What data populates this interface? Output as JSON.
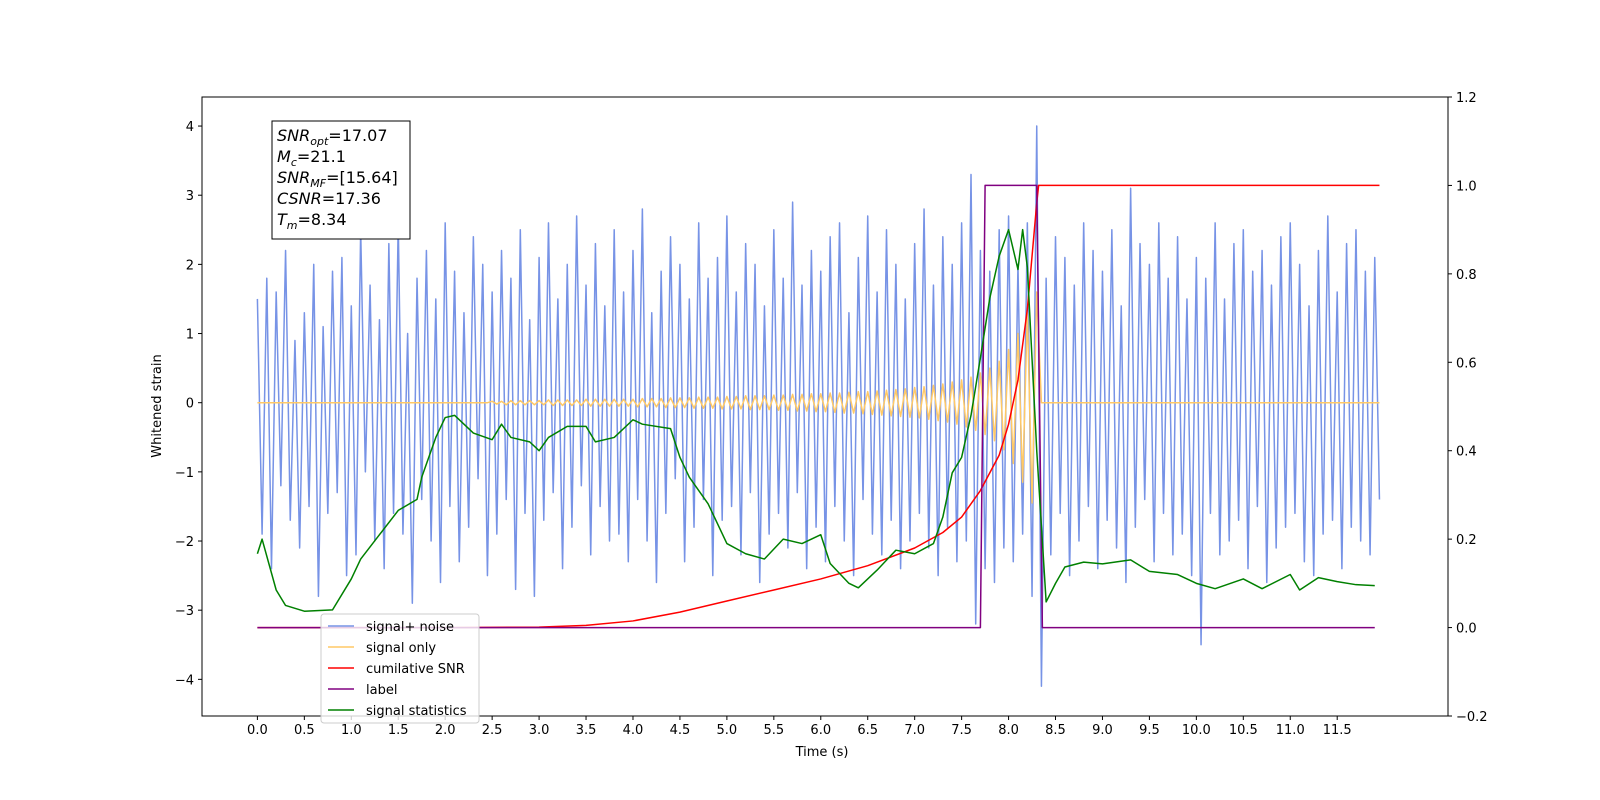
{
  "chart_data": {
    "type": "line",
    "xlabel": "Time (s)",
    "ylabel": "Whitened strain",
    "xlim": [
      -0.59,
      12.68
    ],
    "ylim": [
      -4.53,
      4.42
    ],
    "y2lim": [
      -0.2,
      1.2
    ],
    "xticks": [
      {
        "value": 0,
        "label": "0.0"
      },
      0.5,
      {
        "value": 1,
        "label": "1.0"
      },
      1.5,
      {
        "value": 2,
        "label": "2.0"
      },
      2.5,
      {
        "value": 3,
        "label": "3.0"
      },
      3.5,
      {
        "value": 4,
        "label": "4.0"
      },
      4.5,
      {
        "value": 5,
        "label": "5.0"
      },
      5.5,
      {
        "value": 6,
        "label": "6.0"
      },
      6.5,
      {
        "value": 7,
        "label": "7.0"
      },
      7.5,
      {
        "value": 8,
        "label": "8.0"
      },
      8.5,
      {
        "value": 9,
        "label": "9.0"
      },
      9.5,
      {
        "value": 10,
        "label": "10.0"
      },
      10.5,
      {
        "value": 11,
        "label": "11.0"
      },
      11.5
    ],
    "yticks": [
      {
        "value": -4,
        "label": "−4"
      },
      {
        "value": -3,
        "label": "−3"
      },
      {
        "value": -2,
        "label": "−2"
      },
      {
        "value": -1,
        "label": "−1"
      },
      0,
      1,
      2,
      3,
      4
    ],
    "y2ticks": [
      {
        "value": -0.2,
        "label": "−0.2"
      },
      {
        "value": 0,
        "label": "0.0"
      },
      0.2,
      0.4,
      0.6,
      0.8,
      {
        "value": 1,
        "label": "1.0"
      },
      1.2
    ],
    "x": [
      0,
      0.05,
      0.1,
      0.15,
      0.2,
      0.25,
      0.3,
      0.35,
      0.4,
      0.45,
      0.5,
      0.55,
      0.6,
      0.65,
      0.7,
      0.75,
      0.8,
      0.85,
      0.9,
      0.95,
      1,
      1.05,
      1.1,
      1.15,
      1.2,
      1.25,
      1.3,
      1.35,
      1.4,
      1.45,
      1.5,
      1.55,
      1.6,
      1.65,
      1.7,
      1.75,
      1.8,
      1.85,
      1.9,
      1.95,
      2,
      2.05,
      2.1,
      2.15,
      2.2,
      2.25,
      2.3,
      2.35,
      2.4,
      2.45,
      2.5,
      2.55,
      2.6,
      2.65,
      2.7,
      2.75,
      2.8,
      2.85,
      2.9,
      2.95,
      3,
      3.05,
      3.1,
      3.15,
      3.2,
      3.25,
      3.3,
      3.35,
      3.4,
      3.45,
      3.5,
      3.55,
      3.6,
      3.65,
      3.7,
      3.75,
      3.8,
      3.85,
      3.9,
      3.95,
      4,
      4.05,
      4.1,
      4.15,
      4.2,
      4.25,
      4.3,
      4.35,
      4.4,
      4.45,
      4.5,
      4.55,
      4.6,
      4.65,
      4.7,
      4.75,
      4.8,
      4.85,
      4.9,
      4.95,
      5,
      5.05,
      5.1,
      5.15,
      5.2,
      5.25,
      5.3,
      5.35,
      5.4,
      5.45,
      5.5,
      5.55,
      5.6,
      5.65,
      5.7,
      5.75,
      5.8,
      5.85,
      5.9,
      5.95,
      6,
      6.05,
      6.1,
      6.15,
      6.2,
      6.25,
      6.3,
      6.35,
      6.4,
      6.45,
      6.5,
      6.55,
      6.6,
      6.65,
      6.7,
      6.75,
      6.8,
      6.85,
      6.9,
      6.95,
      7,
      7.05,
      7.1,
      7.15,
      7.2,
      7.25,
      7.3,
      7.35,
      7.4,
      7.45,
      7.5,
      7.55,
      7.6,
      7.65,
      7.7,
      7.75,
      7.8,
      7.85,
      7.9,
      7.95,
      8,
      8.05,
      8.1,
      8.15,
      8.2,
      8.25,
      8.3,
      8.35,
      8.4,
      8.45,
      8.5,
      8.55,
      8.6,
      8.65,
      8.7,
      8.75,
      8.8,
      8.85,
      8.9,
      8.95,
      9,
      9.05,
      9.1,
      9.15,
      9.2,
      9.25,
      9.3,
      9.35,
      9.4,
      9.45,
      9.5,
      9.55,
      9.6,
      9.65,
      9.7,
      9.75,
      9.8,
      9.85,
      9.9,
      9.95,
      10,
      10.05,
      10.1,
      10.15,
      10.2,
      10.25,
      10.3,
      10.35,
      10.4,
      10.45,
      10.5,
      10.55,
      10.6,
      10.65,
      10.7,
      10.75,
      10.8,
      10.85,
      10.9,
      10.95,
      11,
      11.05,
      11.1,
      11.15,
      11.2,
      11.25,
      11.3,
      11.35,
      11.4,
      11.45,
      11.5,
      11.55,
      11.6,
      11.65,
      11.7,
      11.75,
      11.8,
      11.85,
      11.9,
      11.95
    ],
    "series": [
      {
        "name": "signal+ noise",
        "color": "#7793e6",
        "values": [
          1.5,
          -1.9,
          1.8,
          -2.4,
          1.6,
          -1.2,
          2.2,
          -1.7,
          0.9,
          -2.1,
          1.3,
          -1.5,
          2.0,
          -2.8,
          1.1,
          -1.6,
          1.9,
          -1.3,
          2.1,
          -2.5,
          1.4,
          -2.2,
          2.5,
          -1.0,
          1.7,
          -2.0,
          1.2,
          -2.4,
          2.3,
          -1.6,
          2.6,
          -1.9,
          1.0,
          -2.9,
          1.8,
          -1.4,
          2.2,
          -2.0,
          1.5,
          -2.6,
          2.6,
          -1.5,
          1.9,
          -2.3,
          1.3,
          -1.8,
          2.4,
          -1.1,
          2.0,
          -2.5,
          1.6,
          -1.9,
          2.2,
          -1.4,
          1.8,
          -2.7,
          2.5,
          -1.6,
          1.2,
          -2.8,
          2.1,
          -1.7,
          2.6,
          -1.3,
          1.5,
          -2.4,
          2.0,
          -1.8,
          2.7,
          -1.2,
          1.7,
          -2.2,
          2.3,
          -1.5,
          1.4,
          -2.0,
          2.5,
          -1.9,
          1.6,
          -2.3,
          2.2,
          -1.4,
          2.8,
          -2.0,
          1.3,
          -2.6,
          1.9,
          -1.6,
          2.4,
          -1.1,
          2.0,
          -2.3,
          1.5,
          -1.8,
          2.6,
          -1.4,
          1.8,
          -2.5,
          2.1,
          -1.7,
          2.7,
          -1.5,
          1.6,
          -2.2,
          2.3,
          -1.3,
          2.0,
          -2.6,
          1.4,
          -1.9,
          2.5,
          -1.6,
          1.8,
          -2.1,
          2.9,
          -1.3,
          1.7,
          -2.4,
          2.2,
          -1.8,
          1.9,
          -2.3,
          2.4,
          -1.5,
          2.6,
          -2.0,
          1.3,
          -2.5,
          2.1,
          -1.4,
          2.7,
          -1.9,
          1.6,
          -2.2,
          2.5,
          -1.7,
          2.0,
          -2.4,
          1.5,
          -2.0,
          2.3,
          -1.6,
          2.8,
          -2.1,
          1.7,
          -2.5,
          2.4,
          -1.8,
          2.0,
          -2.3,
          2.6,
          -2.0,
          3.3,
          -3.2,
          2.2,
          -2.4,
          1.9,
          -2.6,
          2.5,
          -2.1,
          2.7,
          -2.3,
          2.0,
          -1.9,
          2.6,
          -2.8,
          4.0,
          -4.1,
          1.8,
          -2.2,
          2.4,
          -1.6,
          2.1,
          -2.5,
          1.7,
          -2.0,
          2.6,
          -1.5,
          2.2,
          -2.4,
          1.9,
          -1.7,
          2.5,
          -2.1,
          1.4,
          -2.6,
          3.1,
          -1.8,
          2.3,
          -1.4,
          2.0,
          -2.3,
          2.6,
          -1.6,
          1.8,
          -2.2,
          2.4,
          -1.9,
          1.5,
          -2.5,
          2.1,
          -3.5,
          1.8,
          -1.6,
          2.6,
          -2.2,
          1.5,
          -2.0,
          2.3,
          -1.7,
          2.5,
          -2.4,
          1.9,
          -1.5,
          2.2,
          -2.6,
          1.7,
          -2.1,
          2.4,
          -1.8,
          2.6,
          -1.6,
          2.0,
          -2.3,
          1.4,
          -2.5,
          2.2,
          -1.9,
          2.7,
          -1.7,
          1.6,
          -2.4,
          2.3,
          -1.8,
          2.5,
          -2.0,
          1.9,
          -2.2,
          2.1,
          -1.4
        ]
      },
      {
        "name": "signal only",
        "color": "#ffc966",
        "values": [
          0,
          0,
          0,
          0,
          0,
          0,
          0,
          0,
          0,
          0,
          0,
          0,
          0,
          0,
          0,
          0,
          0,
          0,
          0,
          0,
          0,
          0,
          0,
          0,
          0,
          0,
          0,
          0,
          0,
          0,
          0,
          0,
          0,
          0,
          0,
          0,
          0,
          0,
          0,
          0,
          0,
          0,
          0,
          0,
          0,
          0,
          0,
          0,
          0,
          0,
          0.02,
          -0.02,
          0.02,
          -0.03,
          0.03,
          -0.03,
          0.03,
          -0.03,
          0.03,
          -0.03,
          0.03,
          -0.03,
          0.04,
          -0.04,
          0.04,
          -0.04,
          0.04,
          -0.04,
          0.04,
          -0.04,
          0.05,
          -0.05,
          0.05,
          -0.05,
          0.05,
          -0.05,
          0.05,
          -0.05,
          0.05,
          -0.05,
          0.05,
          -0.06,
          0.06,
          -0.06,
          0.06,
          -0.06,
          0.06,
          -0.07,
          0.07,
          -0.07,
          0.07,
          -0.07,
          0.07,
          -0.08,
          0.08,
          -0.08,
          0.08,
          -0.08,
          0.08,
          -0.09,
          0.09,
          -0.09,
          0.09,
          -0.09,
          0.1,
          -0.1,
          0.1,
          -0.1,
          0.1,
          -0.1,
          0.11,
          -0.11,
          0.11,
          -0.11,
          0.12,
          -0.12,
          0.12,
          -0.12,
          0.13,
          -0.13,
          0.13,
          -0.13,
          0.14,
          -0.14,
          0.14,
          -0.15,
          0.15,
          -0.15,
          0.16,
          -0.16,
          0.16,
          -0.17,
          0.17,
          -0.18,
          0.18,
          -0.19,
          0.19,
          -0.2,
          0.2,
          -0.21,
          0.22,
          -0.22,
          0.23,
          -0.24,
          0.25,
          -0.26,
          0.27,
          -0.28,
          0.3,
          -0.31,
          0.33,
          -0.35,
          0.37,
          -0.4,
          0.43,
          -0.46,
          0.5,
          -0.55,
          0.6,
          -0.68,
          0.77,
          -0.88,
          1.0,
          -1.15,
          1.3,
          -1.45,
          1.6,
          0,
          0,
          0,
          0,
          0,
          0,
          0,
          0,
          0,
          0,
          0,
          0,
          0,
          0,
          0,
          0,
          0,
          0,
          0,
          0,
          0,
          0,
          0,
          0,
          0,
          0,
          0,
          0,
          0,
          0,
          0,
          0,
          0,
          0,
          0,
          0,
          0,
          0,
          0,
          0,
          0,
          0,
          0,
          0,
          0,
          0,
          0,
          0,
          0,
          0,
          0,
          0,
          0,
          0,
          0,
          0,
          0,
          0,
          0,
          0,
          0,
          0,
          0,
          0,
          0,
          0,
          0,
          0,
          0,
          0,
          0,
          0,
          0
        ]
      },
      {
        "name": "cumilative SNR",
        "color": "red",
        "axis": "y2",
        "x": [
          0,
          1,
          2,
          3,
          3.5,
          4,
          4.5,
          5,
          5.5,
          6,
          6.5,
          7,
          7.3,
          7.5,
          7.7,
          7.9,
          8.0,
          8.1,
          8.2,
          8.25,
          8.3,
          8.32,
          8.34,
          11.95
        ],
        "values": [
          0,
          0,
          0,
          0.001,
          0.005,
          0.015,
          0.035,
          0.06,
          0.085,
          0.11,
          0.14,
          0.18,
          0.215,
          0.25,
          0.31,
          0.39,
          0.46,
          0.56,
          0.72,
          0.84,
          0.96,
          1.0,
          1.0,
          1.0
        ]
      },
      {
        "name": "label",
        "color": "purple",
        "axis": "y2",
        "x": [
          0,
          7.7,
          7.75,
          8.3,
          8.36,
          11.9
        ],
        "values": [
          0,
          0,
          1,
          1,
          0,
          0
        ]
      },
      {
        "name": "signal statistics",
        "color": "green",
        "axis": "y2",
        "x": [
          0,
          0.05,
          0.2,
          0.3,
          0.5,
          0.8,
          1.0,
          1.1,
          1.3,
          1.5,
          1.7,
          1.75,
          1.9,
          2.0,
          2.1,
          2.3,
          2.5,
          2.6,
          2.7,
          2.9,
          3.0,
          3.1,
          3.3,
          3.5,
          3.6,
          3.8,
          4.0,
          4.1,
          4.4,
          4.5,
          4.6,
          4.8,
          5.0,
          5.2,
          5.4,
          5.6,
          5.8,
          6.0,
          6.1,
          6.3,
          6.4,
          6.6,
          6.8,
          7.0,
          7.2,
          7.3,
          7.4,
          7.5,
          7.6,
          7.7,
          7.8,
          7.9,
          8.0,
          8.1,
          8.15,
          8.2,
          8.3,
          8.4,
          8.5,
          8.6,
          8.8,
          9.0,
          9.3,
          9.5,
          9.8,
          10.0,
          10.2,
          10.5,
          10.7,
          11.0,
          11.1,
          11.3,
          11.5,
          11.7,
          11.9
        ],
        "values": [
          0.167,
          0.2,
          0.085,
          0.05,
          0.037,
          0.04,
          0.11,
          0.155,
          0.21,
          0.265,
          0.29,
          0.34,
          0.43,
          0.475,
          0.48,
          0.44,
          0.425,
          0.46,
          0.43,
          0.42,
          0.4,
          0.43,
          0.455,
          0.455,
          0.42,
          0.43,
          0.47,
          0.46,
          0.45,
          0.385,
          0.34,
          0.28,
          0.19,
          0.167,
          0.155,
          0.2,
          0.19,
          0.21,
          0.145,
          0.1,
          0.09,
          0.13,
          0.175,
          0.167,
          0.19,
          0.25,
          0.35,
          0.385,
          0.48,
          0.61,
          0.745,
          0.84,
          0.9,
          0.81,
          0.9,
          0.815,
          0.4,
          0.058,
          0.1,
          0.137,
          0.148,
          0.144,
          0.153,
          0.127,
          0.12,
          0.1,
          0.088,
          0.11,
          0.088,
          0.12,
          0.085,
          0.113,
          0.104,
          0.097,
          0.095
        ]
      }
    ],
    "annotations": [
      {
        "symbol": "SNR",
        "sub": "opt",
        "text": "=17.07"
      },
      {
        "symbol": "M",
        "sub": "c",
        "text": "=21.1"
      },
      {
        "symbol": "SNR",
        "sub": "MF",
        "text": "=[15.64]"
      },
      {
        "symbol": "CSNR",
        "text": "=17.36"
      },
      {
        "symbol": "T",
        "sub": "m",
        "text": "=8.34"
      }
    ]
  }
}
